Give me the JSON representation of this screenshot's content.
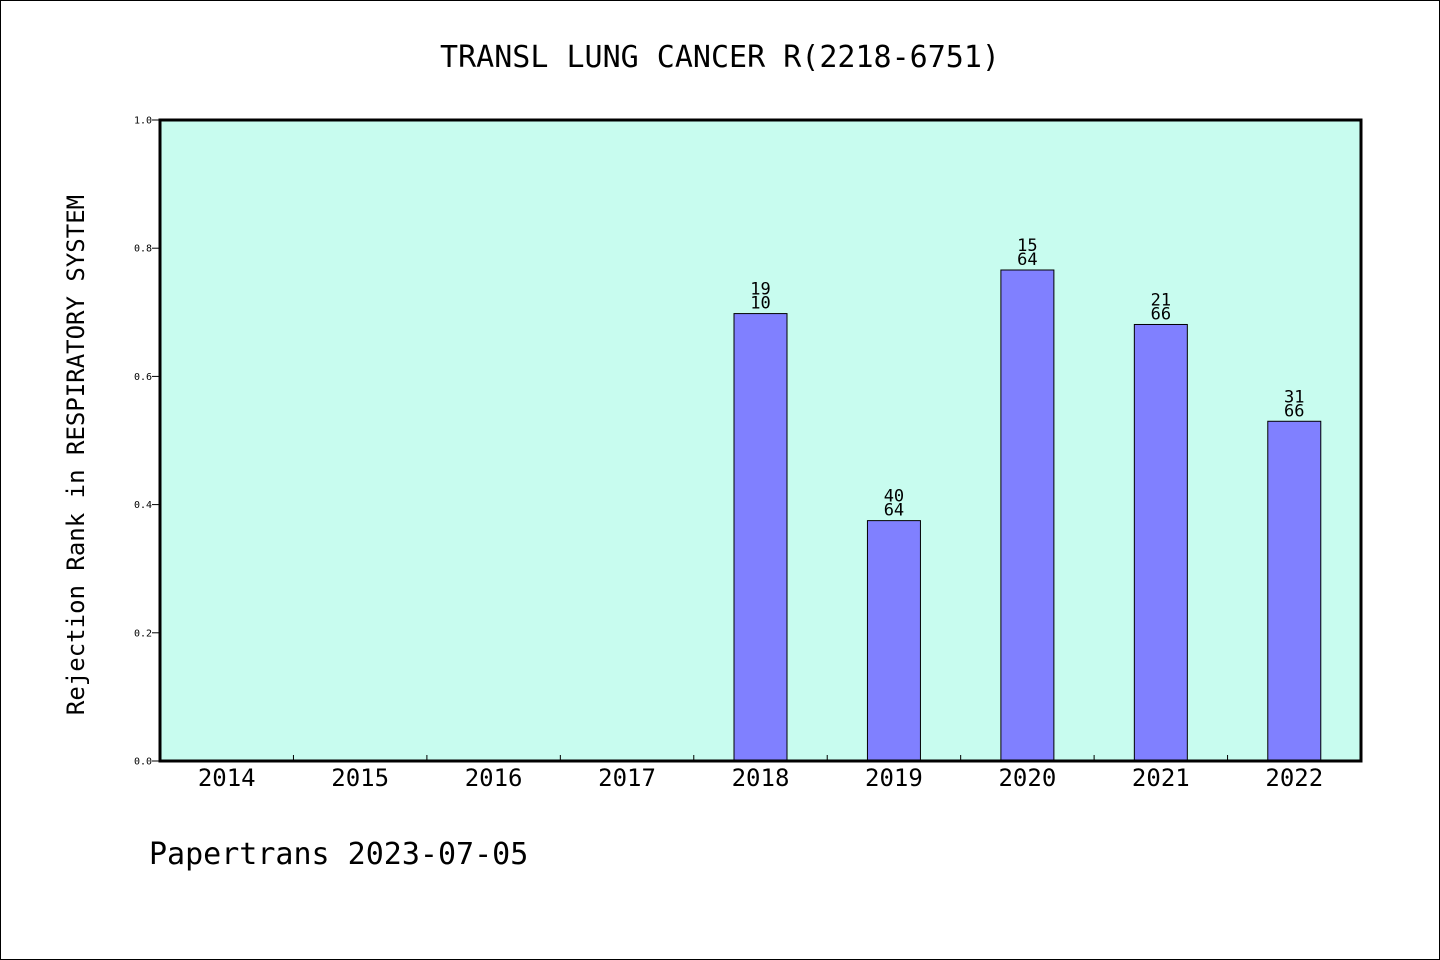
{
  "chart_data": {
    "type": "bar",
    "title": "TRANSL LUNG CANCER R(2218-6751)",
    "ylabel": "Rejection Rank in RESPIRATORY SYSTEM",
    "xlabel": "",
    "ylim": [
      0,
      1.0
    ],
    "yticks": [
      0.0,
      0.2,
      0.4,
      0.6,
      0.8,
      1.0
    ],
    "ytick_labels": [
      "0.0",
      "0.2",
      "0.4",
      "0.6",
      "0.8",
      "1.0"
    ],
    "categories": [
      "2014",
      "2015",
      "2016",
      "2017",
      "2018",
      "2019",
      "2020",
      "2021",
      "2022"
    ],
    "values": [
      null,
      null,
      null,
      null,
      0.698,
      0.375,
      0.766,
      0.681,
      0.53
    ],
    "rank_labels": [
      null,
      null,
      null,
      null,
      "19",
      "40",
      "15",
      "21",
      "31"
    ],
    "total_labels": [
      null,
      null,
      null,
      null,
      "10",
      "64",
      "64",
      "66",
      "66"
    ],
    "plot_background": "#c8fcef",
    "bar_color": "#8080ff",
    "grid": false,
    "legend": "none"
  },
  "footer": {
    "credit": "Papertrans 2023-07-05"
  }
}
